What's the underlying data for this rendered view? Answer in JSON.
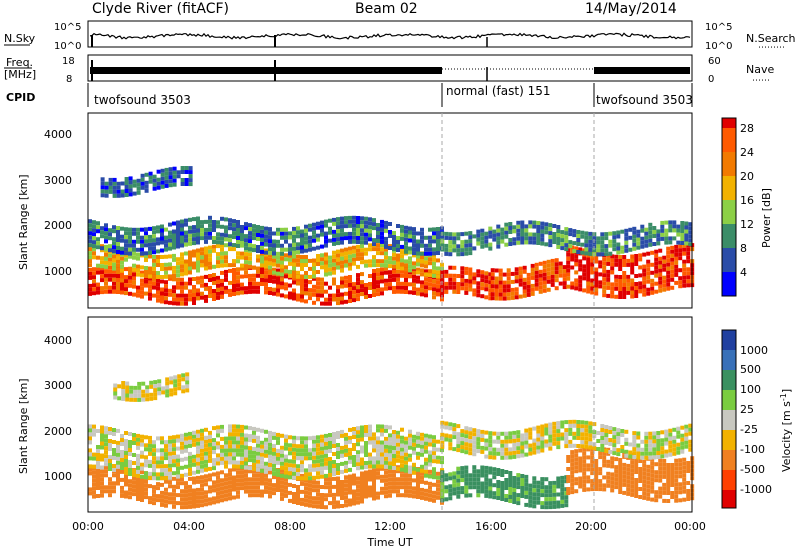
{
  "header": {
    "station": "Clyde River (fitACF)",
    "beam": "Beam 02",
    "date": "14/May/2014"
  },
  "noise_panel": {
    "left_label": "N.Sky",
    "right_label": "N.Search",
    "ticks_left": [
      "10^5",
      "10^0"
    ],
    "ticks_right": [
      "10^5",
      "10^0"
    ]
  },
  "freq_panel": {
    "left_label_line1": "Freq.",
    "left_label_line2": "[MHz]",
    "left_ticks": [
      "18",
      "8"
    ],
    "right_label": "Nave",
    "right_ticks": [
      "60",
      "0"
    ]
  },
  "cpid_panel": {
    "label": "CPID",
    "segments": [
      {
        "name": "twofsound 3503",
        "start_hour": 0,
        "end_hour": 14
      },
      {
        "name": "normal (fast) 151",
        "start_hour": 14,
        "end_hour": 20
      },
      {
        "name": "twofsound 3503",
        "start_hour": 20,
        "end_hour": 24
      }
    ]
  },
  "x_axis": {
    "title": "Time UT",
    "ticks": [
      "00:00",
      "04:00",
      "08:00",
      "12:00",
      "16:00",
      "20:00",
      "00:00"
    ]
  },
  "power_panel": {
    "ylabel": "Slant Range [km]",
    "yticks": [
      "1000",
      "2000",
      "3000",
      "4000"
    ],
    "colorbar_label": "Power [dB]",
    "colorbar_ticks": [
      "4",
      "8",
      "12",
      "16",
      "20",
      "24",
      "28"
    ],
    "colors": [
      "#0000ff",
      "#2a4ca8",
      "#3b8d68",
      "#8ccf46",
      "#f2b200",
      "#f27a00",
      "#ff5a00",
      "#e00000"
    ]
  },
  "velocity_panel": {
    "ylabel": "Slant Range [km]",
    "yticks": [
      "1000",
      "2000",
      "3000",
      "4000"
    ],
    "colorbar_label": "Velocity  [m s",
    "colorbar_label_sup": "-1",
    "colorbar_label_end": "]",
    "colorbar_ticks": [
      "1000",
      "500",
      "100",
      "25",
      "-25",
      "-100",
      "-500",
      "-1000"
    ],
    "colors": [
      "#2040a0",
      "#3870b8",
      "#3a9060",
      "#7acc40",
      "#c8c8c0",
      "#f2b200",
      "#f08020",
      "#ff4000",
      "#e00000"
    ]
  },
  "chart_data": [
    {
      "type": "heatmap",
      "title": "Power",
      "x_unit": "hours UT",
      "xlim": [
        0,
        24
      ],
      "ylim": [
        200,
        4500
      ],
      "ylabel": "Slant Range [km]",
      "value_label": "Power [dB]",
      "value_range": [
        0,
        30
      ],
      "bands": [
        {
          "t0": 0,
          "t1": 14,
          "r0": 400,
          "r1": 1000,
          "value": 27
        },
        {
          "t0": 0,
          "t1": 14,
          "r0": 1000,
          "r1": 1500,
          "value": 18
        },
        {
          "t0": 0,
          "t1": 14,
          "r0": 1500,
          "r1": 2100,
          "value": 8
        },
        {
          "t0": 0.5,
          "t1": 4,
          "r0": 2800,
          "r1": 3200,
          "value": 7
        },
        {
          "t0": 14,
          "t1": 16,
          "r0": 400,
          "r1": 1000,
          "value": 28
        },
        {
          "t0": 16,
          "t1": 19,
          "r0": 500,
          "r1": 1200,
          "value": 27
        },
        {
          "t0": 19,
          "t1": 24,
          "r0": 600,
          "r1": 1500,
          "value": 28
        },
        {
          "t0": 14,
          "t1": 24,
          "r0": 1500,
          "r1": 2000,
          "value": 9
        }
      ]
    },
    {
      "type": "heatmap",
      "title": "Velocity",
      "x_unit": "hours UT",
      "xlim": [
        0,
        24
      ],
      "ylim": [
        200,
        4500
      ],
      "ylabel": "Slant Range [km]",
      "value_label": "Velocity [m s-1]",
      "value_range": [
        -1000,
        1000
      ],
      "bands": [
        {
          "t0": 0,
          "t1": 14,
          "r0": 400,
          "r1": 1100,
          "value": -200
        },
        {
          "t0": 0,
          "t1": 14,
          "r0": 1100,
          "r1": 2000,
          "value": 0
        },
        {
          "t0": 1,
          "t1": 4,
          "r0": 2800,
          "r1": 3200,
          "value": 0
        },
        {
          "t0": 14,
          "t1": 19,
          "r0": 400,
          "r1": 1100,
          "value": 150
        },
        {
          "t0": 19,
          "t1": 24,
          "r0": 600,
          "r1": 1500,
          "value": -250
        },
        {
          "t0": 14,
          "t1": 24,
          "r0": 1500,
          "r1": 2100,
          "value": 0
        }
      ]
    }
  ]
}
